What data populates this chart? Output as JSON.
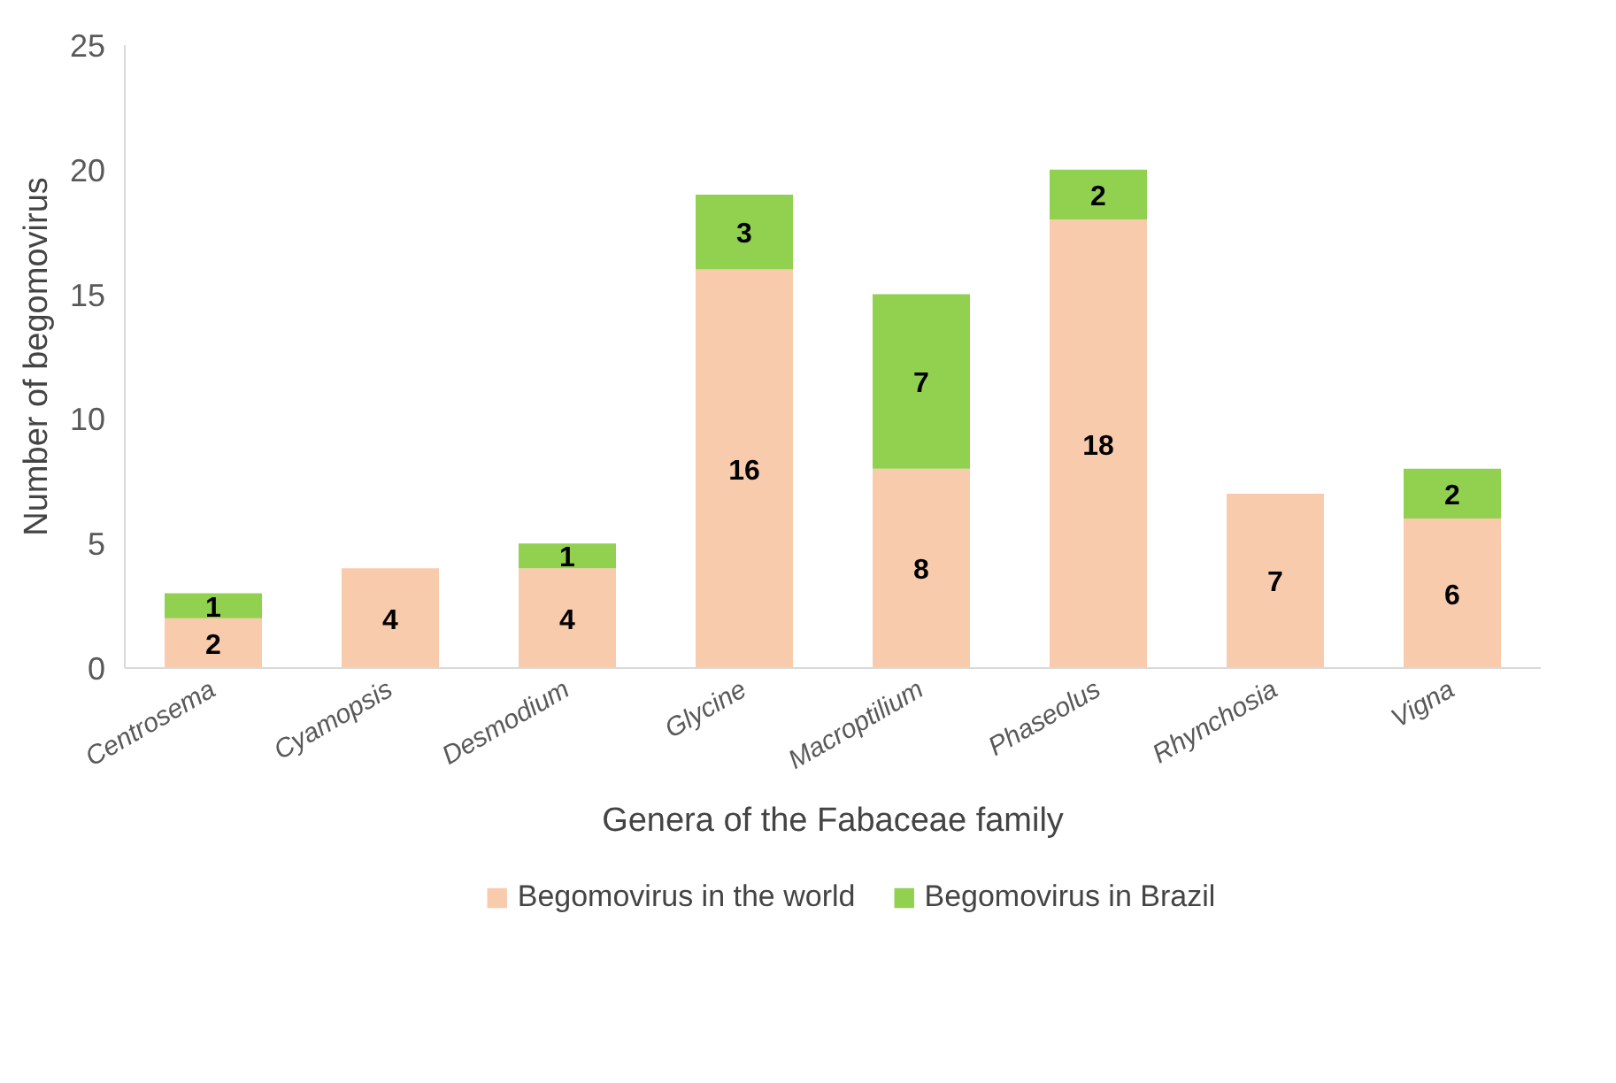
{
  "chart_data": {
    "type": "bar",
    "stacked": true,
    "xlabel": "Genera of the Fabaceae family",
    "ylabel": "Number of begomovirus",
    "categories": [
      "Centrosema",
      "Cyamopsis",
      "Desmodium",
      "Glycine",
      "Macroptilium",
      "Phaseolus",
      "Rhynchosia",
      "Vigna"
    ],
    "series": [
      {
        "name": "Begomovirus in the world",
        "color": "#f8cbad",
        "values": [
          2,
          4,
          4,
          16,
          8,
          18,
          7,
          6
        ]
      },
      {
        "name": "Begomovirus in Brazil",
        "color": "#92d050",
        "values": [
          1,
          null,
          1,
          3,
          7,
          2,
          null,
          2
        ]
      }
    ],
    "ylim": [
      0,
      25
    ],
    "yticks": [
      0,
      5,
      10,
      15,
      20,
      25
    ],
    "grid": false,
    "legend": "bottom",
    "data_labels": true
  }
}
